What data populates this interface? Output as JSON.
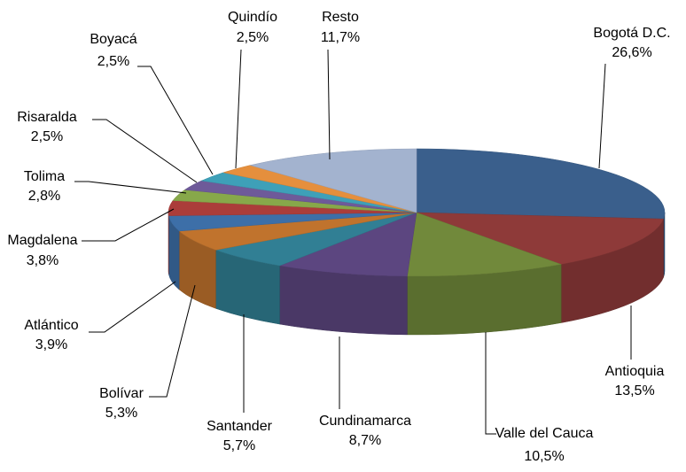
{
  "chart_data": {
    "type": "pie3d",
    "categories": [
      "Bogotá D.C.",
      "Antioquia",
      "Valle del Cauca",
      "Cundinamarca",
      "Santander",
      "Bolívar",
      "Atlántico",
      "Magdalena",
      "Tolima",
      "Risaralda",
      "Boyacá",
      "Quindío",
      "Resto"
    ],
    "values": [
      26.6,
      13.5,
      10.5,
      8.7,
      5.7,
      5.3,
      3.9,
      3.8,
      2.8,
      2.5,
      2.5,
      2.5,
      11.7
    ],
    "value_labels": [
      "26,6%",
      "13,5%",
      "10,5%",
      "8,7%",
      "5,7%",
      "5,3%",
      "3,9%",
      "3,8%",
      "2,8%",
      "2,5%",
      "2,5%",
      "2,5%",
      "11,7%"
    ],
    "colors": [
      "#3a5f8c",
      "#8e3a39",
      "#71893b",
      "#5c4680",
      "#317f94",
      "#c0732d",
      "#3d6fa8",
      "#ab3d3a",
      "#87a84a",
      "#6e5a99",
      "#3ea0b8",
      "#e58f3d",
      "#a3b3cf"
    ]
  }
}
